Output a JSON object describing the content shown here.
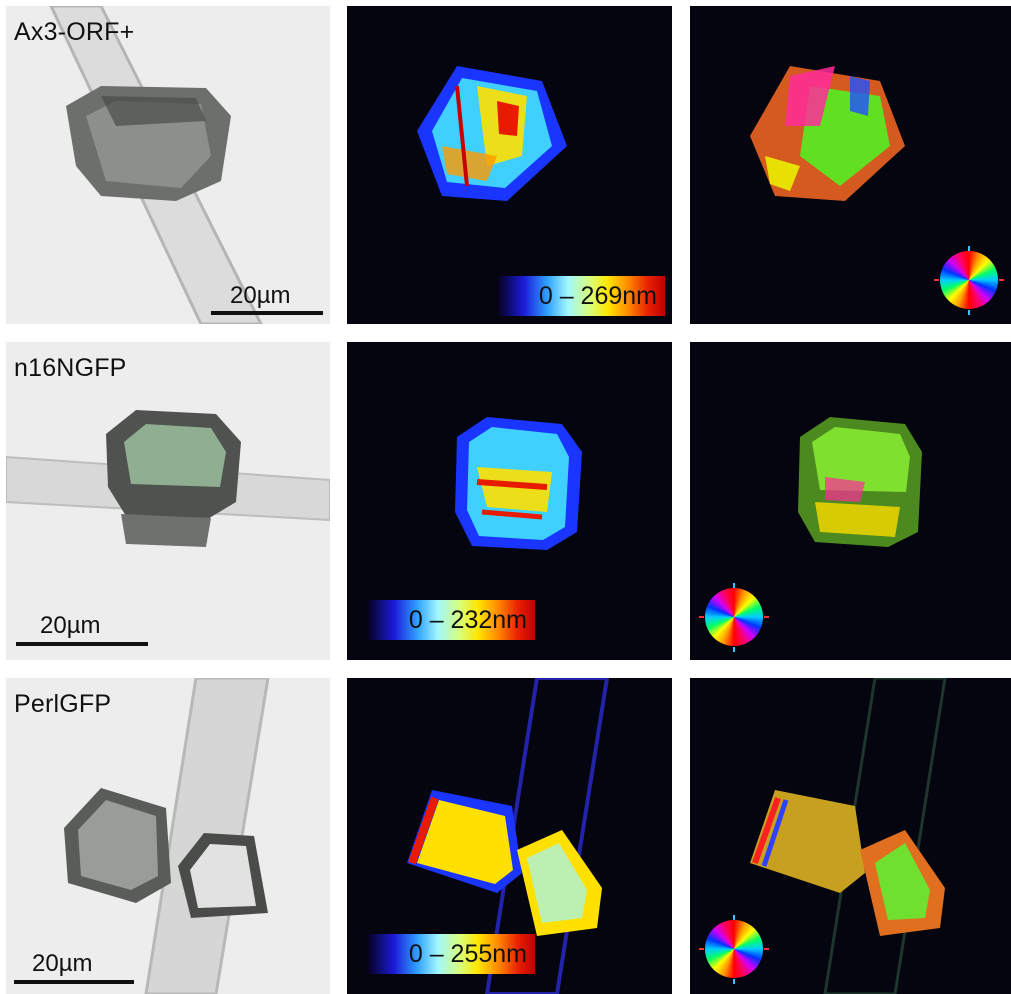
{
  "rows": [
    {
      "sample_label": "Ax3-ORF+",
      "scale_label": "20µm",
      "retardance_range": "0 – 269nm"
    },
    {
      "sample_label": "n16NGFP",
      "scale_label": "20µm",
      "retardance_range": "0 – 232nm"
    },
    {
      "sample_label": "PerlGFP",
      "scale_label": "20µm",
      "retardance_range": "0 – 255nm"
    }
  ],
  "legend_colors": [
    "#050018",
    "#1b1bd8",
    "#2fa0ff",
    "#9ff6ff",
    "#d7ff7f",
    "#ffe600",
    "#ff8a00",
    "#e82000",
    "#c00000"
  ],
  "orientation_wheel": {
    "icon": "color-wheel-icon"
  }
}
